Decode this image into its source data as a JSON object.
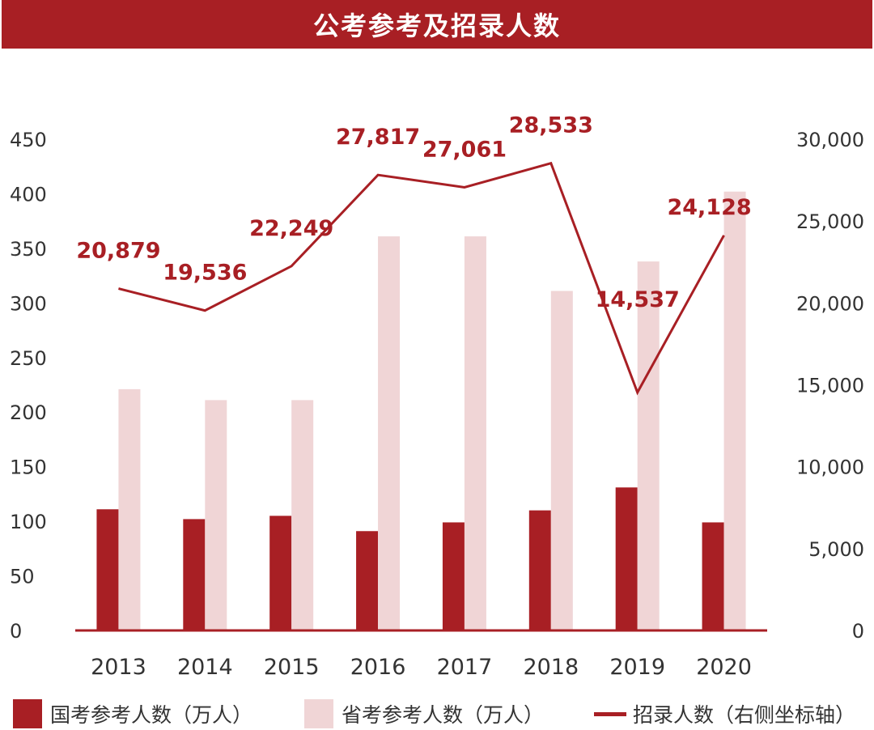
{
  "title": "公考参考及招录人数",
  "colors": {
    "title_bg": "#a81f24",
    "national_bar": "#a81f24",
    "provincial_bar": "#f0d5d6",
    "line": "#a81f24",
    "axis_text": "#333333",
    "label_text": "#a81f24"
  },
  "chart_data": {
    "type": "bar",
    "categories": [
      "2013",
      "2014",
      "2015",
      "2016",
      "2017",
      "2018",
      "2019",
      "2020"
    ],
    "series": [
      {
        "name": "国考参考人数（万人）",
        "type": "bar",
        "axis": "left",
        "values": [
          111,
          102,
          105,
          91,
          99,
          110,
          131,
          99
        ]
      },
      {
        "name": "省考参考人数（万人）",
        "type": "bar",
        "axis": "left",
        "values": [
          221,
          211,
          211,
          361,
          361,
          311,
          338,
          402
        ]
      },
      {
        "name": "招录人数（右侧坐标轴）",
        "type": "line",
        "axis": "right",
        "values": [
          20879,
          19536,
          22249,
          27817,
          27061,
          28533,
          14537,
          24128
        ],
        "data_labels": [
          "20,879",
          "19,536",
          "22,249",
          "27,817",
          "27,061",
          "28,533",
          "14,537",
          "24,128"
        ]
      }
    ],
    "y_left": {
      "ylim": [
        0,
        450
      ],
      "ticks": [
        "0",
        "50",
        "100",
        "150",
        "200",
        "250",
        "300",
        "350",
        "400",
        "450"
      ]
    },
    "y_right": {
      "ylim": [
        0,
        30000
      ],
      "ticks": [
        "0",
        "5,000",
        "10,000",
        "15,000",
        "20,000",
        "25,000",
        "30,000"
      ]
    },
    "grid": false,
    "legend_position": "bottom"
  },
  "legend": [
    {
      "label": "国考参考人数（万人）"
    },
    {
      "label": "省考参考人数（万人）"
    },
    {
      "label": "招录人数（右侧坐标轴）"
    }
  ]
}
